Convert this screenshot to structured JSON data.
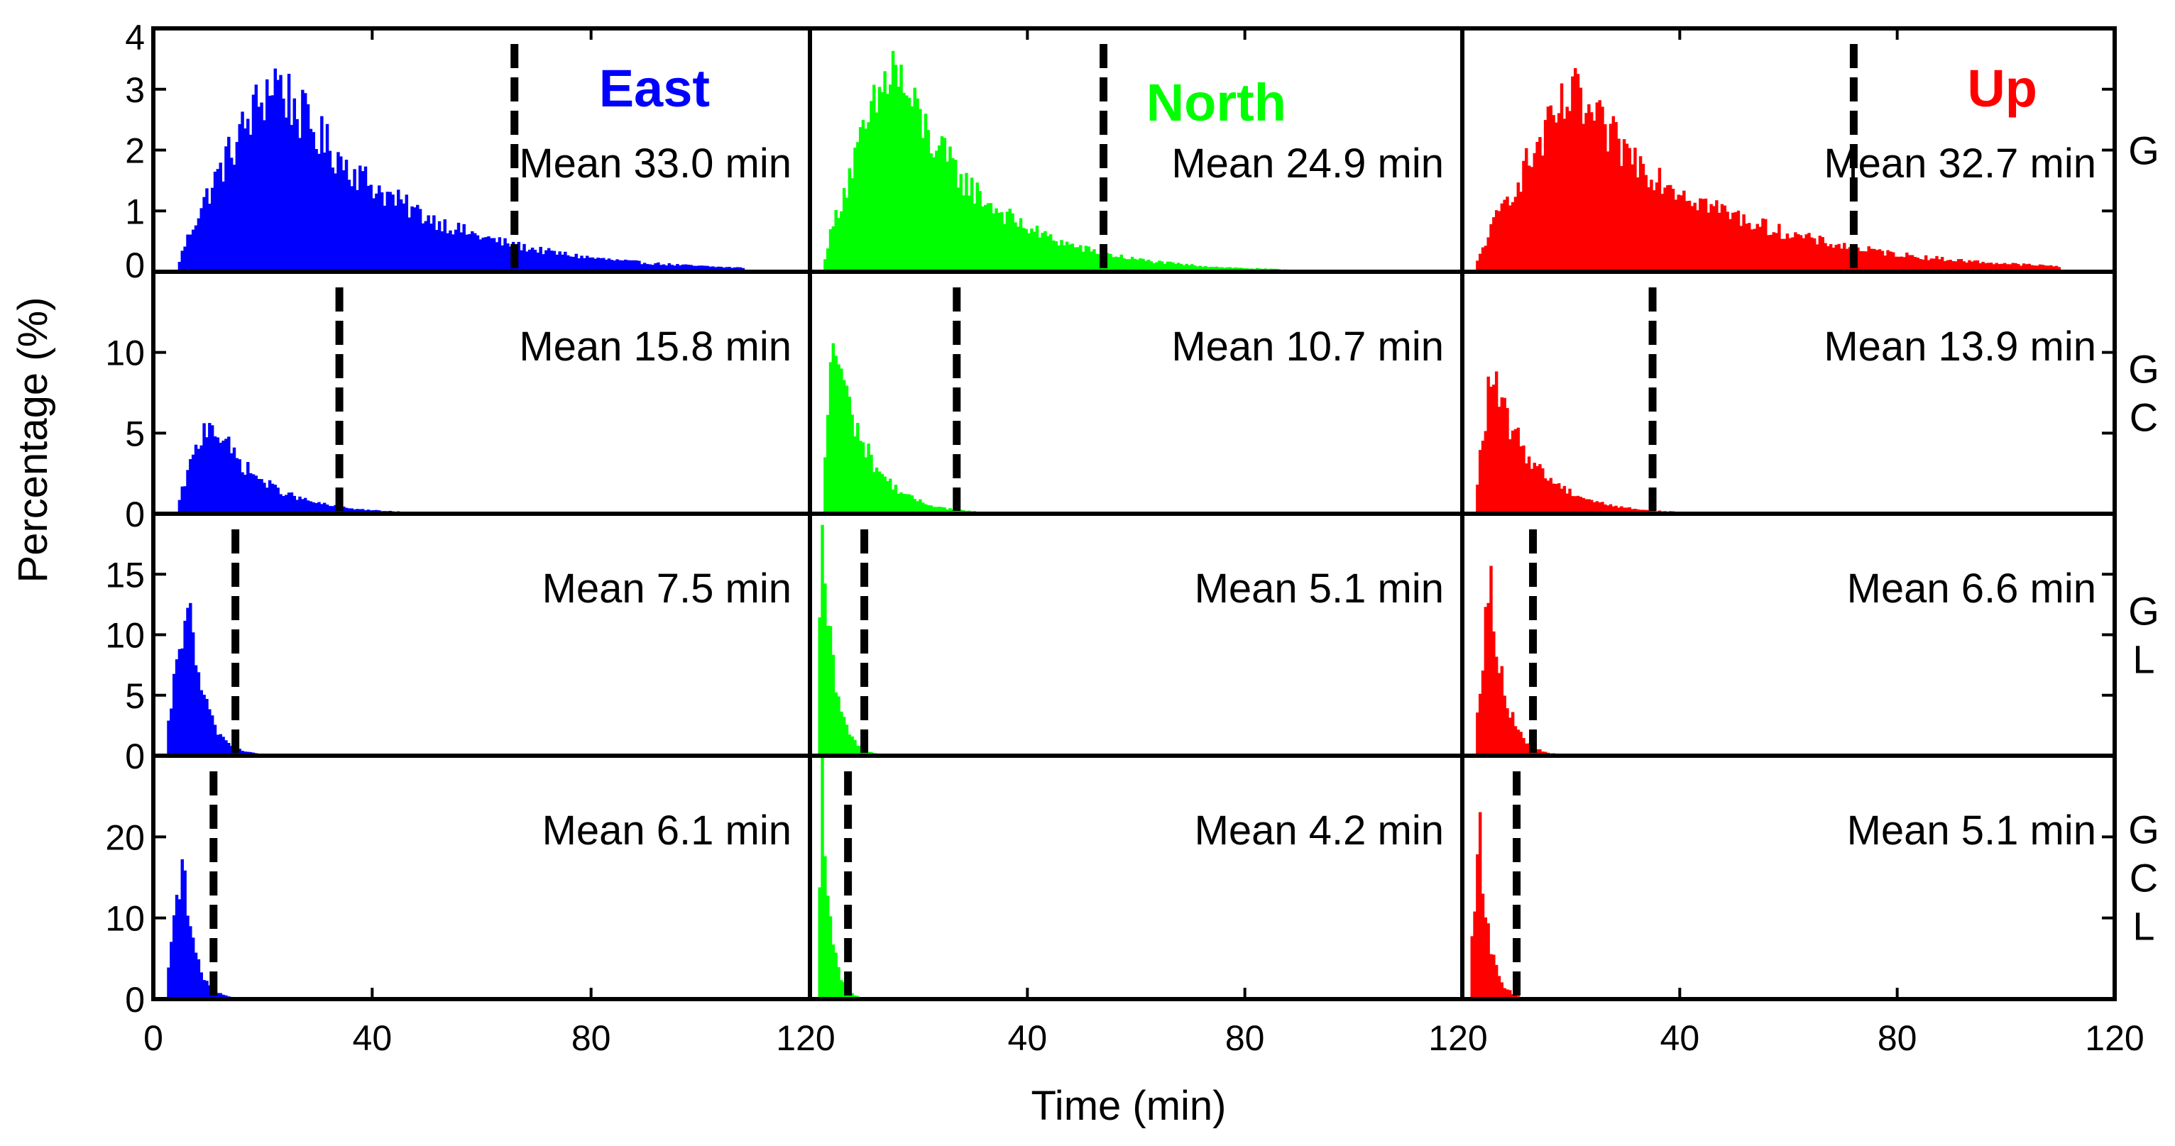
{
  "chart_data": {
    "type": "bar",
    "title": "",
    "xlabel": "Time (min)",
    "ylabel": "Percentage (%)",
    "xlim": [
      0,
      120
    ],
    "xticks": [
      0,
      40,
      80,
      120
    ],
    "grid": false,
    "columns": [
      {
        "component": "East",
        "color": "#0000ff"
      },
      {
        "component": "North",
        "color": "#00ff00"
      },
      {
        "component": "Up",
        "color": "#ff0000"
      }
    ],
    "rows": [
      {
        "label": [
          "G"
        ],
        "ylim": [
          0,
          4
        ],
        "yticks": [
          0,
          1,
          2,
          3,
          4
        ]
      },
      {
        "label": [
          "G",
          "C"
        ],
        "ylim": [
          0,
          15
        ],
        "yticks": [
          0,
          5,
          10
        ]
      },
      {
        "label": [
          "G",
          "L"
        ],
        "ylim": [
          0,
          20
        ],
        "yticks": [
          0,
          5,
          10,
          15
        ]
      },
      {
        "label": [
          "G",
          "C",
          "L"
        ],
        "ylim": [
          0,
          30
        ],
        "yticks": [
          0,
          10,
          20
        ]
      }
    ],
    "panels": [
      {
        "row": 0,
        "col": 0,
        "mean": 33.0,
        "mean_label": "Mean  33.0 min",
        "dashed_x": 66,
        "dist": {
          "start": 4,
          "peak": 22,
          "height": 3.2,
          "decay": 22,
          "end": 108
        }
      },
      {
        "row": 0,
        "col": 1,
        "mean": 24.9,
        "mean_label": "Mean  24.9 min",
        "dashed_x": 54,
        "dist": {
          "start": 2,
          "peak": 15,
          "height": 3.4,
          "decay": 16,
          "end": 88
        }
      },
      {
        "row": 0,
        "col": 2,
        "mean": 32.7,
        "mean_label": "Mean  32.7 min",
        "dashed_x": 72,
        "dist": {
          "start": 2,
          "peak": 20,
          "height": 2.9,
          "decay": 26,
          "end": 110
        }
      },
      {
        "row": 1,
        "col": 0,
        "mean": 15.8,
        "mean_label": "Mean 15.8 min",
        "dashed_x": 34,
        "dist": {
          "start": 4,
          "peak": 10,
          "height": 6.0,
          "decay": 9,
          "end": 58
        }
      },
      {
        "row": 1,
        "col": 1,
        "mean": 10.7,
        "mean_label": "Mean 10.7 min",
        "dashed_x": 27,
        "dist": {
          "start": 2,
          "peak": 4,
          "height": 11.0,
          "decay": 6,
          "end": 40
        }
      },
      {
        "row": 1,
        "col": 2,
        "mean": 13.9,
        "mean_label": "Mean 13.9 min",
        "dashed_x": 35,
        "dist": {
          "start": 2,
          "peak": 5,
          "height": 8.5,
          "decay": 8,
          "end": 48
        }
      },
      {
        "row": 2,
        "col": 0,
        "mean": 7.5,
        "mean_label": "Mean  7.5 min",
        "dashed_x": 15,
        "dist": {
          "start": 2,
          "peak": 6,
          "height": 13.0,
          "decay": 3,
          "end": 20
        }
      },
      {
        "row": 2,
        "col": 1,
        "mean": 5.1,
        "mean_label": "Mean  5.1 min",
        "dashed_x": 10,
        "dist": {
          "start": 1,
          "peak": 2,
          "height": 18.0,
          "decay": 2.2,
          "end": 13
        }
      },
      {
        "row": 2,
        "col": 2,
        "mean": 6.6,
        "mean_label": "Mean  6.6 min",
        "dashed_x": 13,
        "dist": {
          "start": 2,
          "peak": 5,
          "height": 14.5,
          "decay": 2.6,
          "end": 20
        }
      },
      {
        "row": 3,
        "col": 0,
        "mean": 6.1,
        "mean_label": "Mean  6.1 min",
        "dashed_x": 11,
        "dist": {
          "start": 2,
          "peak": 5,
          "height": 17.0,
          "decay": 2.2,
          "end": 16
        }
      },
      {
        "row": 3,
        "col": 1,
        "mean": 4.2,
        "mean_label": "Mean  4.2 min",
        "dashed_x": 7,
        "dist": {
          "start": 1,
          "peak": 2,
          "height": 27.0,
          "decay": 1.5,
          "end": 10
        }
      },
      {
        "row": 3,
        "col": 2,
        "mean": 5.1,
        "mean_label": "Mean  5.1 min",
        "dashed_x": 10,
        "dist": {
          "start": 1,
          "peak": 3,
          "height": 20.0,
          "decay": 1.8,
          "end": 12
        }
      }
    ]
  }
}
